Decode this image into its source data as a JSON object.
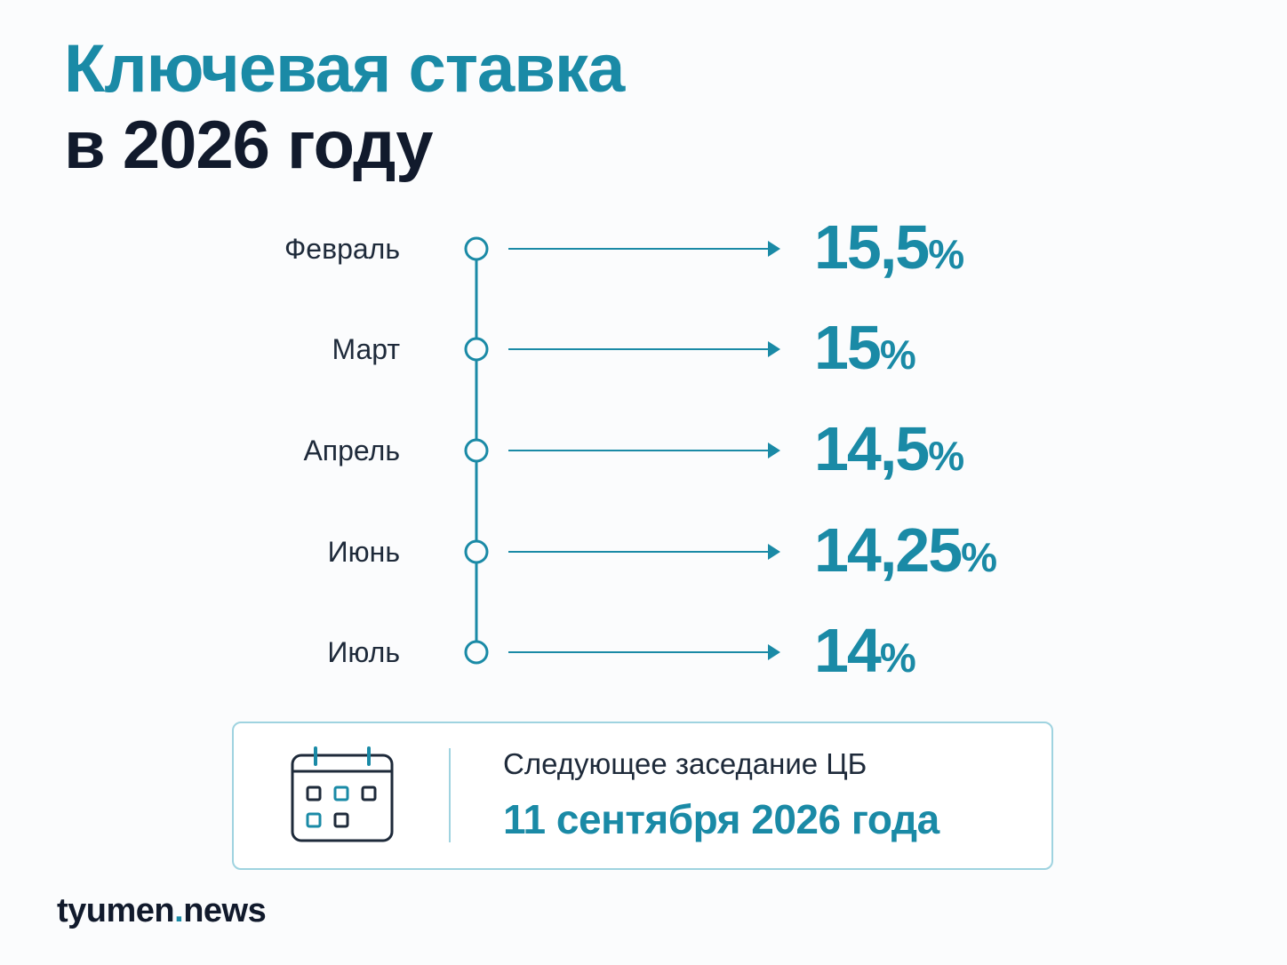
{
  "title": {
    "line1": "Ключевая ставка",
    "line2": "в 2026 году"
  },
  "timeline": [
    {
      "month": "Февраль",
      "rate": "15,5",
      "unit": "%"
    },
    {
      "month": "Март",
      "rate": "15",
      "unit": "%"
    },
    {
      "month": "Апрель",
      "rate": "14,5",
      "unit": "%"
    },
    {
      "month": "Июнь",
      "rate": "14,25",
      "unit": "%"
    },
    {
      "month": "Июль",
      "rate": "14",
      "unit": "%"
    }
  ],
  "next_meeting": {
    "label": "Следующее заседание ЦБ",
    "date": "11 сентября 2026 года",
    "icon": "calendar-icon"
  },
  "brand": {
    "name": "tyumen",
    "dot": ".",
    "suffix": "news"
  },
  "colors": {
    "accent": "#1a8aa6",
    "text_dark": "#111a2c",
    "border": "#9fd3e0"
  }
}
